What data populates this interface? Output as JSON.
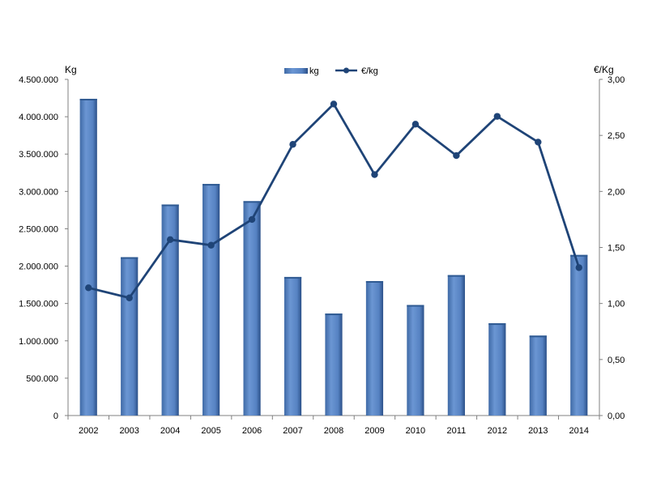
{
  "chart_data": {
    "type": "bar",
    "categories": [
      "2002",
      "2003",
      "2004",
      "2005",
      "2006",
      "2007",
      "2008",
      "2009",
      "2010",
      "2011",
      "2012",
      "2013",
      "2014"
    ],
    "series": [
      {
        "name": "kg",
        "type": "bar",
        "axis": "left",
        "values": [
          4240000,
          2120000,
          2825000,
          3100000,
          2870000,
          1855000,
          1365000,
          1800000,
          1480000,
          1880000,
          1235000,
          1070000,
          2150000
        ]
      },
      {
        "name": "€/kg",
        "type": "line",
        "axis": "right",
        "values": [
          1.14,
          1.05,
          1.57,
          1.52,
          1.75,
          2.42,
          2.78,
          2.15,
          2.6,
          2.32,
          2.67,
          2.44,
          1.32
        ]
      }
    ],
    "ylabel": "Kg",
    "y2label": "€/Kg",
    "ylim": [
      0,
      4500000
    ],
    "y2lim": [
      0,
      3
    ],
    "yticks": [
      "0",
      "500.000",
      "1.000.000",
      "1.500.000",
      "2.000.000",
      "2.500.000",
      "3.000.000",
      "3.500.000",
      "4.000.000",
      "4.500.000"
    ],
    "y2ticks": [
      "0,00",
      "0,50",
      "1,00",
      "1,50",
      "2,00",
      "2,50",
      "3,00"
    ],
    "legend": {
      "position": "top"
    },
    "grid": false,
    "colors": {
      "bar": "#5b87c6",
      "bar_dark": "#2f5a92",
      "line": "#1f4477",
      "axis": "#808080"
    }
  }
}
